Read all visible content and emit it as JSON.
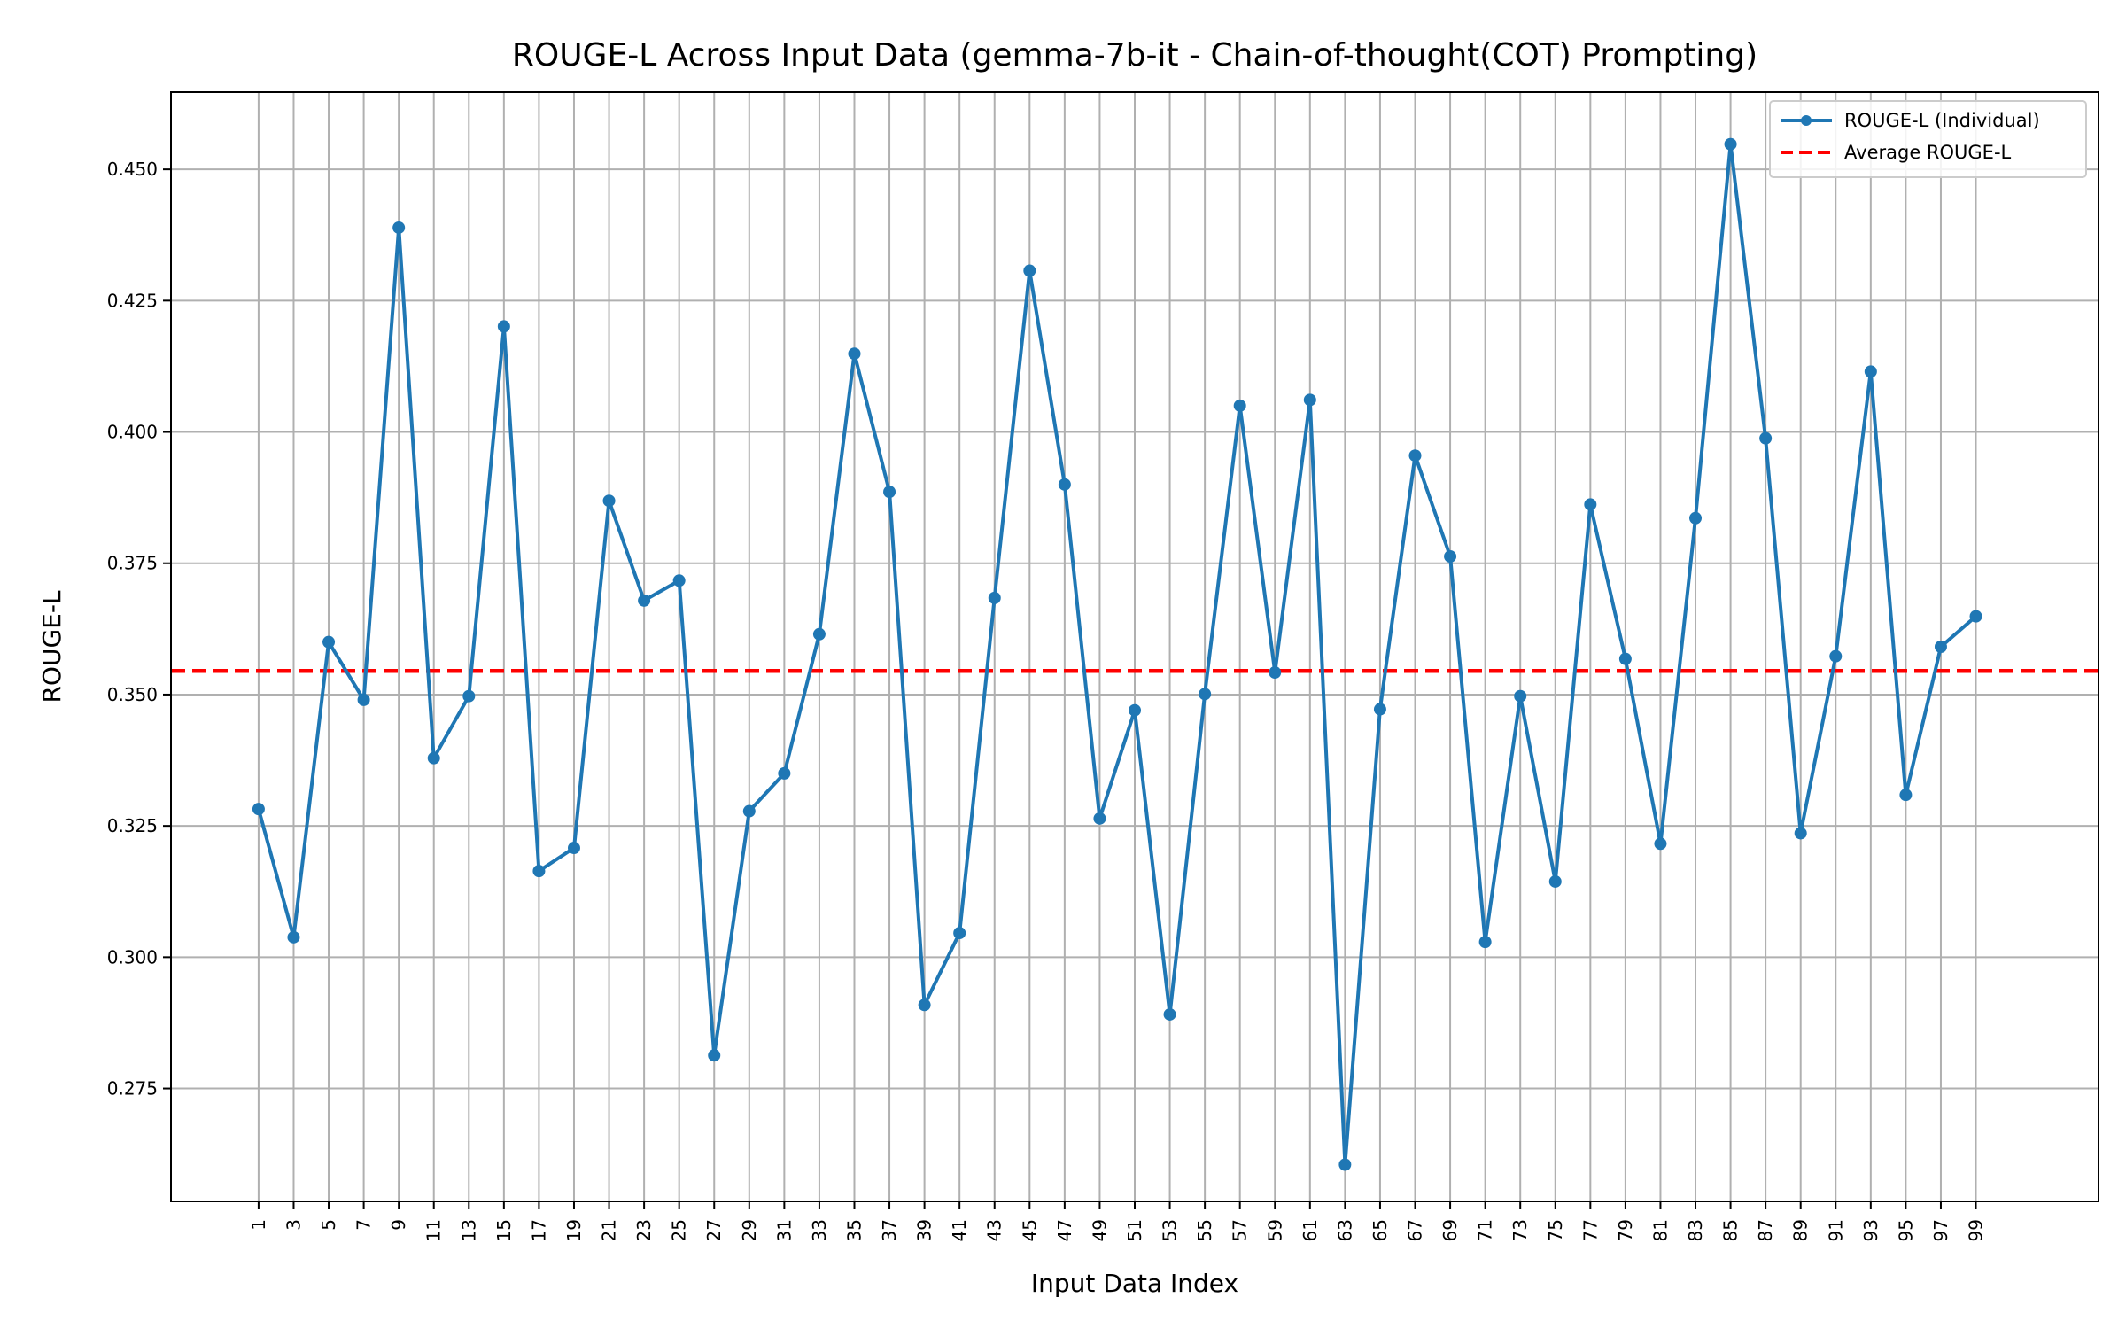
{
  "chart_data": {
    "type": "line",
    "title": "ROUGE-L Across Input Data (gemma-7b-it - Chain-of-thought(COT) Prompting)",
    "xlabel": "Input Data Index",
    "ylabel": "ROUGE-L",
    "x": [
      1,
      3,
      5,
      7,
      9,
      11,
      13,
      15,
      17,
      19,
      21,
      23,
      25,
      27,
      29,
      31,
      33,
      35,
      37,
      39,
      41,
      43,
      45,
      47,
      49,
      51,
      53,
      55,
      57,
      59,
      61,
      63,
      65,
      67,
      69,
      71,
      73,
      75,
      77,
      79,
      81,
      83,
      85,
      87,
      89,
      91,
      93,
      95,
      97,
      99
    ],
    "xlim": [
      -4,
      106
    ],
    "ylim": [
      0.2535,
      0.4647
    ],
    "yticks": [
      "0.275",
      "0.300",
      "0.325",
      "0.350",
      "0.375",
      "0.400",
      "0.425",
      "0.450"
    ],
    "xticks": [
      "1",
      "3",
      "5",
      "7",
      "9",
      "11",
      "13",
      "15",
      "17",
      "19",
      "21",
      "23",
      "25",
      "27",
      "29",
      "31",
      "33",
      "35",
      "37",
      "39",
      "41",
      "43",
      "45",
      "47",
      "49",
      "51",
      "53",
      "55",
      "57",
      "59",
      "61",
      "63",
      "65",
      "67",
      "69",
      "71",
      "73",
      "75",
      "77",
      "79",
      "81",
      "83",
      "85",
      "87",
      "89",
      "91",
      "93",
      "95",
      "97",
      "99"
    ],
    "grid": true,
    "legend_position": "top-right",
    "series": [
      {
        "name": "ROUGE-L (Individual)",
        "color": "#1f77b4",
        "style": "solid-with-markers",
        "values": [
          0.3282,
          0.3038,
          0.36,
          0.349,
          0.4389,
          0.3379,
          0.3497,
          0.4201,
          0.3164,
          0.3208,
          0.3869,
          0.3679,
          0.3717,
          0.2813,
          0.3278,
          0.335,
          0.3615,
          0.4149,
          0.3886,
          0.2909,
          0.3046,
          0.3684,
          0.4307,
          0.39,
          0.3264,
          0.347,
          0.2891,
          0.3501,
          0.405,
          0.3542,
          0.4061,
          0.2605,
          0.3472,
          0.3955,
          0.3763,
          0.3029,
          0.3497,
          0.3144,
          0.3862,
          0.3568,
          0.3216,
          0.3836,
          0.4548,
          0.3988,
          0.3236,
          0.3573,
          0.4115,
          0.3309,
          0.3591,
          0.3649
        ]
      },
      {
        "name": "Average ROUGE-L",
        "color": "#ff0000",
        "style": "dashed",
        "value": 0.3545
      }
    ]
  }
}
